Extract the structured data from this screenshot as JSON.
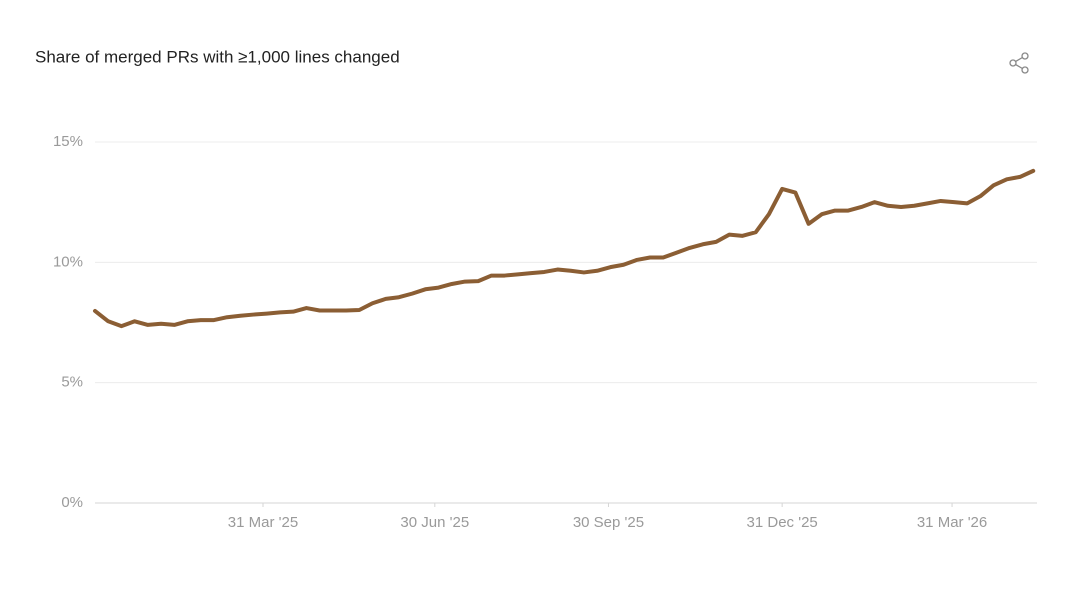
{
  "chart_data": {
    "type": "line",
    "title": "Share of merged PRs with ≥1,000 lines changed",
    "x": [
      "2025-01-01",
      "2025-01-08",
      "2025-01-15",
      "2025-01-22",
      "2025-01-29",
      "2025-02-05",
      "2025-02-12",
      "2025-02-19",
      "2025-02-26",
      "2025-03-05",
      "2025-03-12",
      "2025-03-19",
      "2025-03-26",
      "2025-04-02",
      "2025-04-09",
      "2025-04-16",
      "2025-04-23",
      "2025-04-30",
      "2025-05-07",
      "2025-05-14",
      "2025-05-21",
      "2025-05-28",
      "2025-06-04",
      "2025-06-11",
      "2025-06-18",
      "2025-06-25",
      "2025-07-02",
      "2025-07-09",
      "2025-07-16",
      "2025-07-23",
      "2025-07-30",
      "2025-08-06",
      "2025-08-13",
      "2025-08-20",
      "2025-08-27",
      "2025-09-03",
      "2025-09-10",
      "2025-09-17",
      "2025-09-24",
      "2025-10-01",
      "2025-10-08",
      "2025-10-15",
      "2025-10-22",
      "2025-10-29",
      "2025-11-05",
      "2025-11-12",
      "2025-11-19",
      "2025-11-26",
      "2025-12-03",
      "2025-12-10",
      "2025-12-17",
      "2025-12-24",
      "2025-12-31",
      "2026-01-07",
      "2026-01-14",
      "2026-01-21",
      "2026-01-28",
      "2026-02-04",
      "2026-02-11",
      "2026-02-18",
      "2026-02-25",
      "2026-03-04",
      "2026-03-11",
      "2026-03-18",
      "2026-03-25",
      "2026-04-01",
      "2026-04-08",
      "2026-04-15",
      "2026-04-22",
      "2026-04-29",
      "2026-05-06",
      "2026-05-13"
    ],
    "values": [
      7.98,
      7.55,
      7.35,
      7.55,
      7.4,
      7.45,
      7.4,
      7.55,
      7.6,
      7.6,
      7.72,
      7.78,
      7.83,
      7.87,
      7.92,
      7.95,
      8.1,
      8.0,
      8.0,
      8.0,
      8.02,
      8.3,
      8.48,
      8.55,
      8.7,
      8.88,
      8.95,
      9.1,
      9.2,
      9.22,
      9.45,
      9.45,
      9.5,
      9.55,
      9.6,
      9.7,
      9.65,
      9.58,
      9.65,
      9.8,
      9.9,
      10.1,
      10.2,
      10.2,
      10.4,
      10.6,
      10.75,
      10.85,
      11.15,
      11.1,
      11.25,
      12.0,
      13.05,
      12.9,
      11.6,
      12.0,
      12.15,
      12.15,
      12.3,
      12.5,
      12.35,
      12.3,
      12.35,
      12.45,
      12.55,
      12.5,
      12.45,
      12.75,
      13.2,
      13.45,
      13.55,
      13.8
    ],
    "color": "#8b5e34",
    "xlim": [
      "2025-01-01",
      "2026-05-15"
    ],
    "xticks": [
      {
        "value": "2025-03-31",
        "label": "31 Mar '25"
      },
      {
        "value": "2025-06-30",
        "label": "30 Jun '25"
      },
      {
        "value": "2025-09-30",
        "label": "30 Sep '25"
      },
      {
        "value": "2025-12-31",
        "label": "31 Dec '25"
      },
      {
        "value": "2026-03-31",
        "label": "31 Mar '26"
      }
    ],
    "ylim": [
      0,
      15
    ],
    "yticks": [
      {
        "value": 0,
        "label": "0%"
      },
      {
        "value": 5,
        "label": "5%"
      },
      {
        "value": 10,
        "label": "10%"
      },
      {
        "value": 15,
        "label": "15%"
      }
    ],
    "grid": true
  }
}
